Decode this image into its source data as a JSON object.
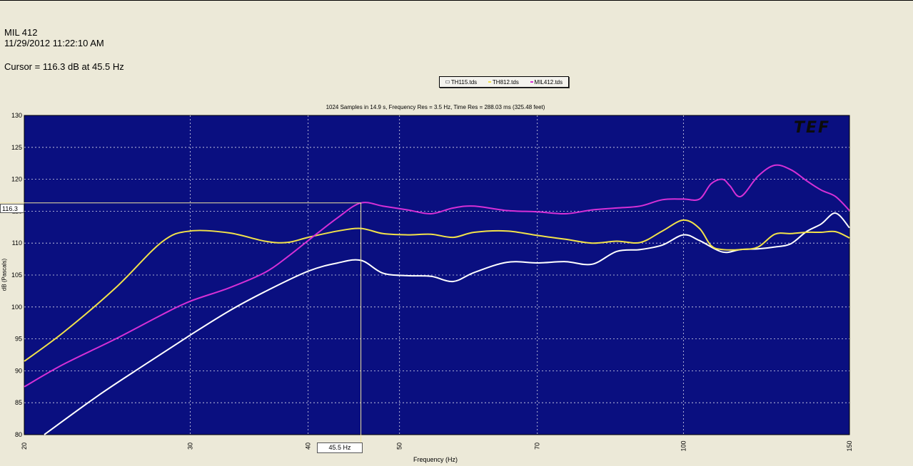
{
  "header": {
    "title": "MIL 412",
    "timestamp": "11/29/2012 11:22:10 AM",
    "cursor_readout": "Cursor = 116.3 dB at 45.5 Hz"
  },
  "legend": [
    {
      "label": "TH115.tds",
      "color": "#ffffff"
    },
    {
      "label": "TH812.tds",
      "color": "#f2e24a"
    },
    {
      "label": "MIL412.tds",
      "color": "#d630d6"
    }
  ],
  "cursor": {
    "x_label": "45.5 Hz",
    "y_label": "116.3",
    "x": 45.5,
    "y": 116.3
  },
  "colors": {
    "plot_bg": "#0a0f80",
    "grid": "#ffffff",
    "cursor": "#f2e6a0"
  },
  "chart_data": {
    "type": "line",
    "title": "1024 Samples in 14.9 s, Frequency Res = 3.5 Hz, Time Res = 288.03 ms (325.48 feet)",
    "xlabel": "Frequency (Hz)",
    "ylabel": "dB (Pascals)",
    "xscale": "log",
    "xlim": [
      20,
      150
    ],
    "ylim": [
      80,
      130
    ],
    "xticks": [
      20,
      30,
      40,
      50,
      70,
      100,
      150
    ],
    "xtick_labels": [
      "20",
      "30",
      "40",
      "50",
      "70",
      "100",
      "150"
    ],
    "yticks": [
      80,
      85,
      90,
      95,
      100,
      105,
      110,
      115,
      120,
      125,
      130
    ],
    "ytick_labels": [
      "80",
      "85",
      "90",
      "95",
      "100",
      "105",
      "110",
      "115",
      "120",
      "125",
      "130"
    ],
    "grid": true,
    "logo": "TEF",
    "series": [
      {
        "name": "TH115.tds",
        "color": "#ffffff",
        "x": [
          21,
          24,
          27,
          30,
          33,
          36,
          40,
          43,
          45.5,
          48,
          51,
          54,
          57,
          60,
          65,
          70,
          75,
          80,
          85,
          90,
          95,
          100,
          104,
          110,
          115,
          120,
          125,
          130,
          135,
          140,
          145,
          150
        ],
        "y": [
          80,
          86.2,
          91.2,
          95.6,
          99.4,
          102.4,
          105.6,
          106.9,
          107.3,
          105.3,
          104.9,
          104.8,
          104,
          105.4,
          107,
          106.9,
          107.1,
          106.7,
          108.7,
          109,
          109.7,
          111.3,
          110.4,
          108.6,
          109,
          109.1,
          109.4,
          109.9,
          111.8,
          113,
          114.7,
          112.4
        ]
      },
      {
        "name": "TH812.tds",
        "color": "#f2e24a",
        "x": [
          20,
          22,
          25,
          28,
          30,
          33,
          36,
          38,
          40,
          43,
          45.5,
          48,
          51,
          54,
          57,
          60,
          65,
          70,
          75,
          80,
          85,
          90,
          95,
          100,
          104,
          107,
          110,
          115,
          120,
          125,
          130,
          135,
          140,
          145,
          150
        ],
        "y": [
          91.5,
          96,
          103,
          110.2,
          111.9,
          111.6,
          110.3,
          110.1,
          110.9,
          111.9,
          112.3,
          111.5,
          111.3,
          111.4,
          110.9,
          111.7,
          111.9,
          111.2,
          110.6,
          110,
          110.3,
          110.1,
          111.9,
          113.6,
          112.3,
          109.6,
          109,
          109,
          109.4,
          111.4,
          111.5,
          111.7,
          111.7,
          111.8,
          110.8
        ]
      },
      {
        "name": "MIL412.tds",
        "color": "#d630d6",
        "x": [
          20,
          22,
          25,
          28,
          30,
          33,
          36,
          38,
          40,
          43,
          45.5,
          48,
          51,
          54,
          57,
          60,
          65,
          70,
          75,
          80,
          85,
          90,
          95,
          100,
          104,
          107,
          110,
          112,
          115,
          120,
          125,
          130,
          135,
          140,
          145,
          150
        ],
        "y": [
          87.5,
          91,
          95,
          98.8,
          100.9,
          103,
          105.4,
          107.8,
          110.4,
          114,
          116.3,
          115.8,
          115.2,
          114.6,
          115.5,
          115.8,
          115.1,
          114.9,
          114.6,
          115.2,
          115.5,
          115.8,
          116.8,
          116.9,
          116.9,
          119.3,
          120,
          119,
          117.3,
          120.5,
          122.2,
          121.5,
          119.8,
          118.3,
          117.3,
          115.1
        ]
      }
    ]
  }
}
